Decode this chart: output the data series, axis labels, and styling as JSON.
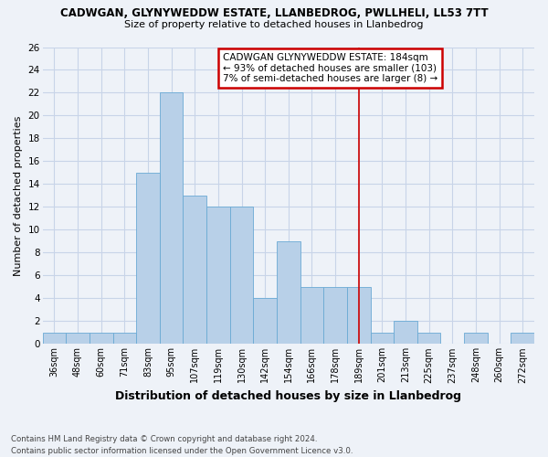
{
  "title1": "CADWGAN, GLYNYWEDDW ESTATE, LLANBEDROG, PWLLHELI, LL53 7TT",
  "title2": "Size of property relative to detached houses in Llanbedrog",
  "xlabel": "Distribution of detached houses by size in Llanbedrog",
  "ylabel": "Number of detached properties",
  "footnote": "Contains HM Land Registry data © Crown copyright and database right 2024.\nContains public sector information licensed under the Open Government Licence v3.0.",
  "bar_labels": [
    "36sqm",
    "48sqm",
    "60sqm",
    "71sqm",
    "83sqm",
    "95sqm",
    "107sqm",
    "119sqm",
    "130sqm",
    "142sqm",
    "154sqm",
    "166sqm",
    "178sqm",
    "189sqm",
    "201sqm",
    "213sqm",
    "225sqm",
    "237sqm",
    "248sqm",
    "260sqm",
    "272sqm"
  ],
  "bar_values": [
    1,
    1,
    1,
    1,
    15,
    22,
    13,
    12,
    12,
    4,
    9,
    5,
    5,
    5,
    1,
    2,
    1,
    0,
    1,
    0,
    1
  ],
  "bar_color": "#b8d0e8",
  "bar_edge_color": "#6aaad4",
  "grid_color": "#c8d4e8",
  "background_color": "#eef2f8",
  "property_line_x": 13.0,
  "annotation_text": "CADWGAN GLYNYWEDDW ESTATE: 184sqm\n← 93% of detached houses are smaller (103)\n7% of semi-detached houses are larger (8) →",
  "annotation_box_color": "#cc0000",
  "ylim": [
    0,
    26
  ],
  "yticks": [
    0,
    2,
    4,
    6,
    8,
    10,
    12,
    14,
    16,
    18,
    20,
    22,
    24,
    26
  ]
}
